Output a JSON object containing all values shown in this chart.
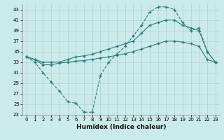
{
  "xlabel": "Humidex (Indice chaleur)",
  "background_color": "#cceaea",
  "grid_color": "#b0d8d8",
  "line_color": "#2e7d7d",
  "xlim": [
    -0.5,
    23.5
  ],
  "ylim": [
    23,
    44
  ],
  "xticks": [
    0,
    1,
    2,
    3,
    4,
    5,
    6,
    7,
    8,
    9,
    10,
    11,
    12,
    13,
    14,
    15,
    16,
    17,
    18,
    19,
    20,
    21,
    22,
    23
  ],
  "yticks": [
    23,
    25,
    27,
    29,
    31,
    33,
    35,
    37,
    39,
    41,
    43
  ],
  "line1_x": [
    0,
    1,
    2,
    3,
    4,
    5,
    6,
    7,
    8,
    9,
    10,
    11,
    12,
    13,
    14,
    15,
    16,
    17,
    18,
    19,
    20,
    21,
    22,
    23
  ],
  "line1_y": [
    34,
    33,
    31,
    29.2,
    27.5,
    25.5,
    25.2,
    23.5,
    23.5,
    30.5,
    33,
    34.5,
    36,
    38,
    40,
    42.5,
    43.5,
    43.5,
    43,
    40.5,
    39,
    39.5,
    35,
    33
  ],
  "line2_x": [
    0,
    1,
    2,
    3,
    4,
    5,
    6,
    7,
    8,
    9,
    10,
    11,
    12,
    13,
    14,
    15,
    16,
    17,
    18,
    19,
    20,
    21,
    22,
    23
  ],
  "line2_y": [
    34,
    33.5,
    33,
    33,
    33,
    33.5,
    34,
    34.2,
    34.5,
    35,
    35.5,
    36,
    36.5,
    37,
    38.5,
    40,
    40.5,
    41,
    41,
    40,
    39.5,
    39,
    35,
    33
  ],
  "line3_x": [
    0,
    1,
    2,
    3,
    4,
    5,
    6,
    7,
    8,
    9,
    10,
    11,
    12,
    13,
    14,
    15,
    16,
    17,
    18,
    19,
    20,
    21,
    22,
    23
  ],
  "line3_y": [
    34,
    33.5,
    32.5,
    32.5,
    32.8,
    33,
    33.2,
    33.3,
    33.5,
    33.8,
    34,
    34.3,
    34.6,
    35,
    35.5,
    36,
    36.5,
    37,
    37,
    36.8,
    36.5,
    36,
    33.5,
    33
  ],
  "marker": "+",
  "markersize": 3,
  "linewidth": 0.8
}
